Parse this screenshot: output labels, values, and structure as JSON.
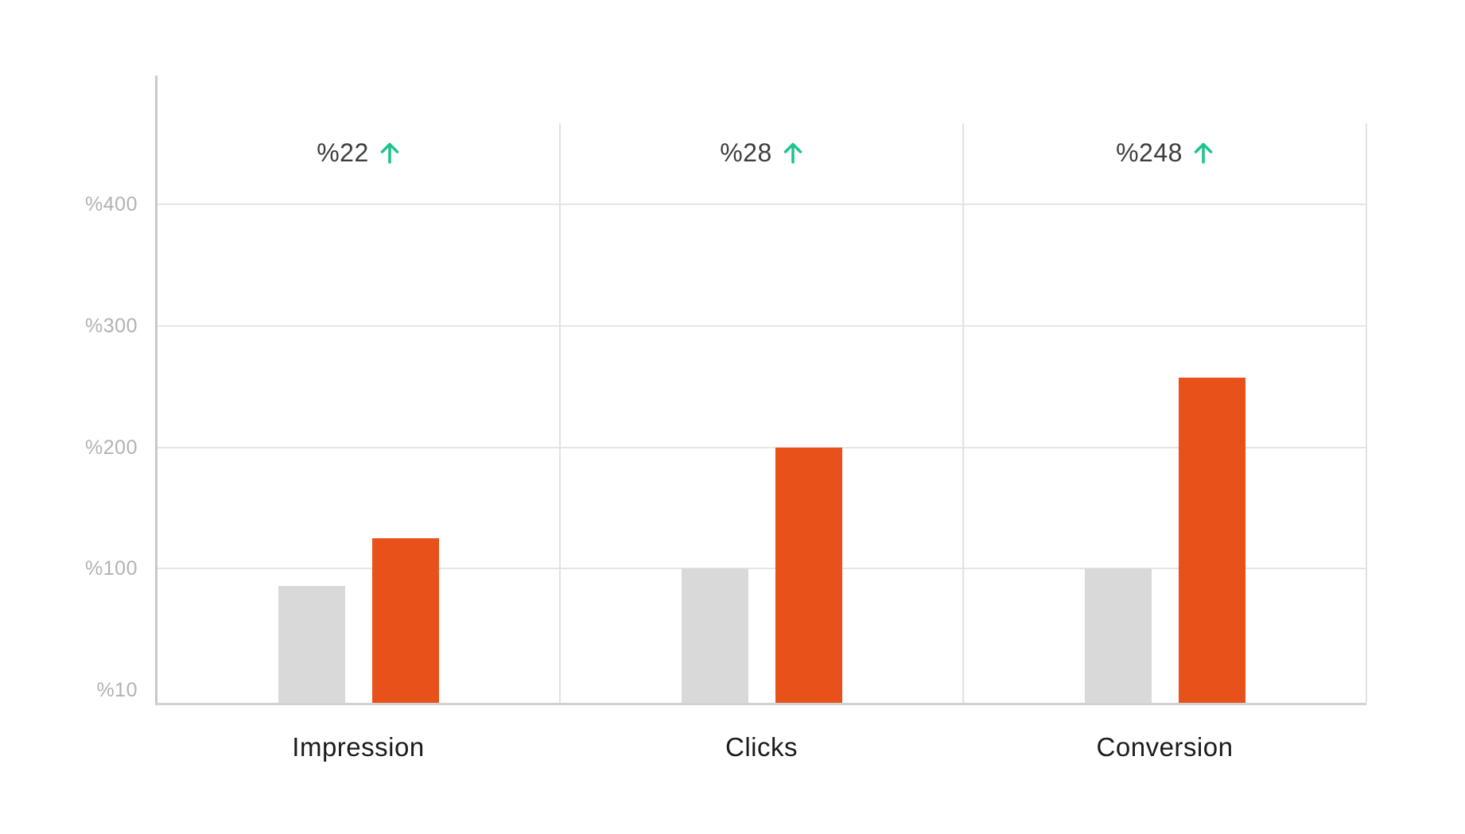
{
  "chart_data": {
    "type": "bar",
    "title": "",
    "categories": [
      "Impression",
      "Clicks",
      "Conversion"
    ],
    "series": [
      {
        "name": "baseline-gray",
        "color": "#d9d9d9",
        "values": [
          87,
          100,
          100
        ]
      },
      {
        "name": "growth-orange",
        "color": "#e8511a",
        "values": [
          125,
          200,
          257
        ]
      }
    ],
    "annotations": [
      {
        "category": "Impression",
        "label": "%22",
        "direction": "up"
      },
      {
        "category": "Clicks",
        "label": "%28",
        "direction": "up"
      },
      {
        "category": "Conversion",
        "label": "%248",
        "direction": "up"
      }
    ],
    "y_axis": {
      "tick_labels": [
        "%400",
        "%300",
        "%200",
        "%100",
        "%10"
      ],
      "tick_values": [
        400,
        300,
        200,
        100,
        10
      ],
      "gridline_tick_indexes": [
        0,
        1,
        2,
        3
      ],
      "scale_note": "ticks evenly spaced; segment %10-%100 same height as %100-%200"
    },
    "legend": "none",
    "grid": "horizontal",
    "colors": {
      "bar_gray": "#d9d9d9",
      "bar_orange": "#e8511a",
      "arrow_green": "#1fc48c",
      "annotation_text": "#3e3e3e",
      "category_text": "#1b1b1b",
      "tick_text": "#b2b2b2",
      "gridline": "#e6e6e6",
      "panel_divider": "#e2e2e2",
      "y_axis_line": "#c9c9c9",
      "x_axis_line": "#d2d2d2",
      "background": "#ffffff"
    }
  }
}
